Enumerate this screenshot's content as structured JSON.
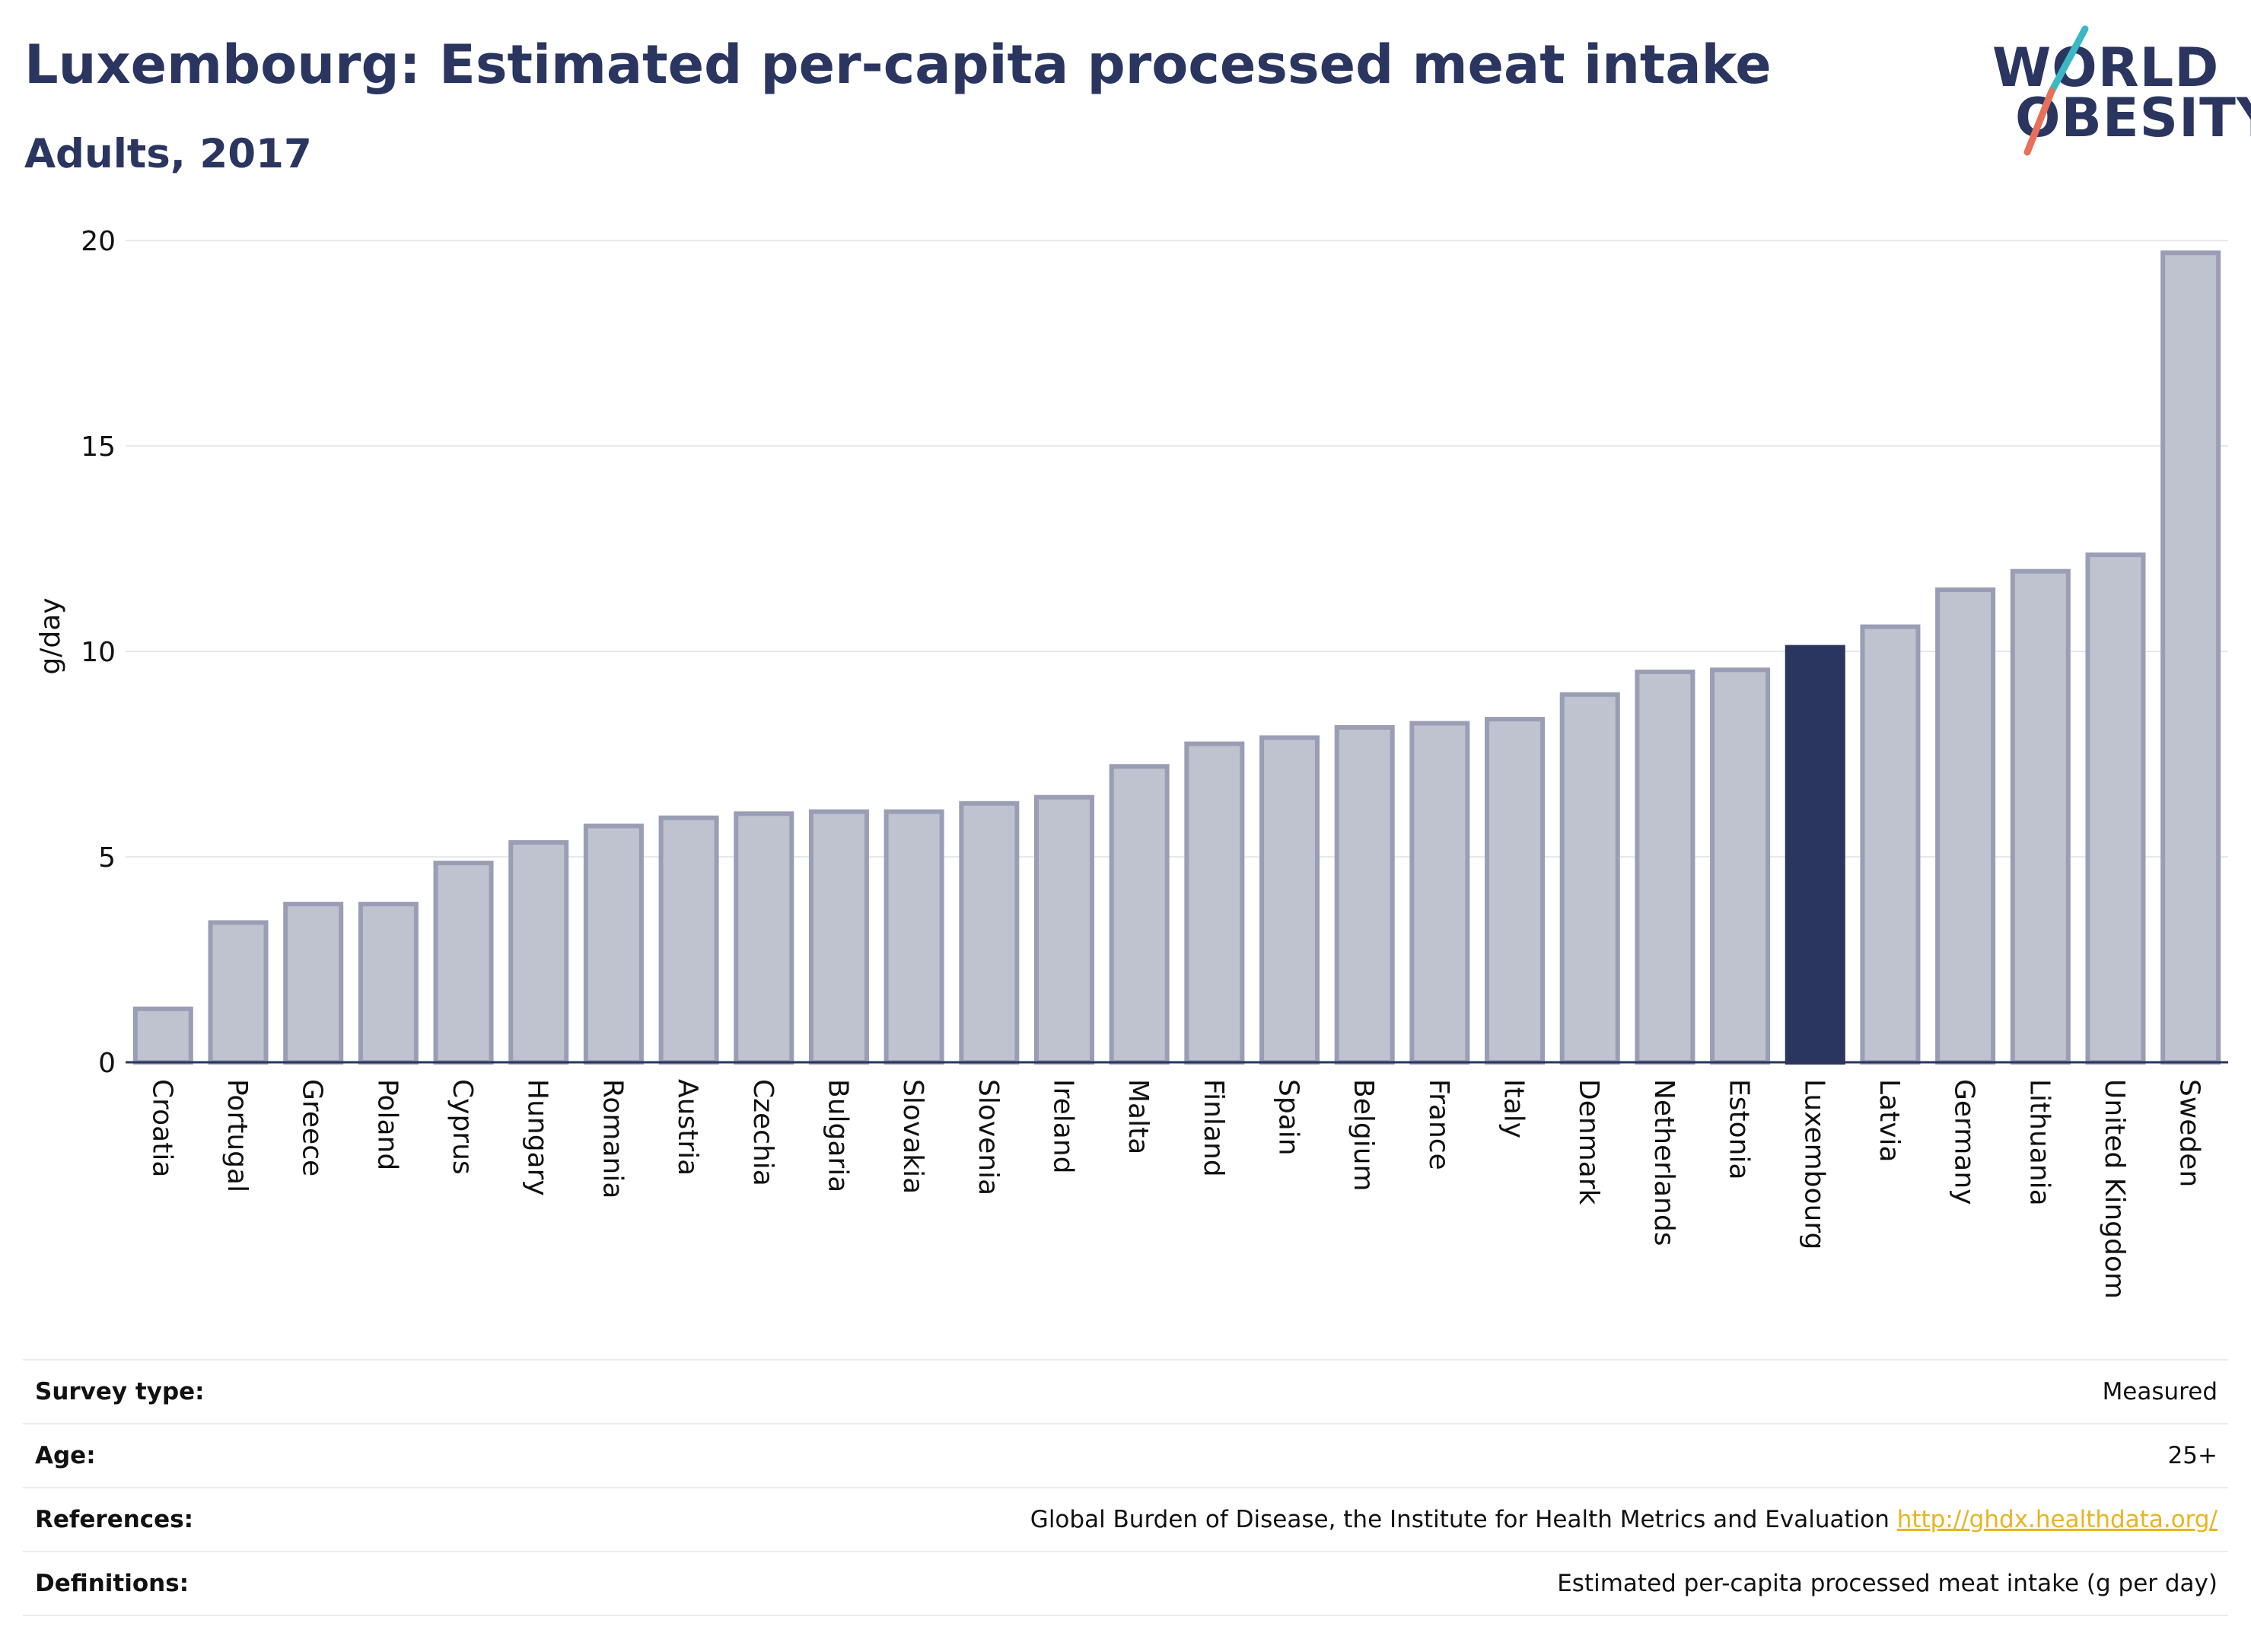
{
  "title": "Luxembourg: Estimated per-capita processed meat intake",
  "subtitle": "Adults, 2017",
  "logo": {
    "line1": "WORLD",
    "line2": "OBESITY"
  },
  "colors": {
    "highlight": "#2a3560",
    "bar_fill": "#bfc2cf",
    "bar_stroke": "#9a9eb5",
    "logo_teal": "#3bb8c3",
    "logo_coral": "#e8705a",
    "link": "#e8b422"
  },
  "chart_data": {
    "type": "bar",
    "ylabel": "g/day",
    "ylim": [
      0,
      20
    ],
    "yticks": [
      0,
      5,
      10,
      15,
      20
    ],
    "grid": true,
    "highlight": "Luxembourg",
    "categories": [
      "Croatia",
      "Portugal",
      "Greece",
      "Poland",
      "Cyprus",
      "Hungary",
      "Romania",
      "Austria",
      "Czechia",
      "Bulgaria",
      "Slovakia",
      "Slovenia",
      "Ireland",
      "Malta",
      "Finland",
      "Spain",
      "Belgium",
      "France",
      "Italy",
      "Denmark",
      "Netherlands",
      "Estonia",
      "Luxembourg",
      "Latvia",
      "Germany",
      "Lithuania",
      "United Kingdom",
      "Sweden"
    ],
    "values": [
      1.3,
      3.4,
      3.85,
      3.85,
      4.85,
      5.35,
      5.75,
      5.95,
      6.05,
      6.1,
      6.1,
      6.3,
      6.45,
      7.2,
      7.75,
      7.9,
      8.15,
      8.25,
      8.35,
      8.95,
      9.5,
      9.55,
      10.1,
      10.6,
      11.5,
      11.95,
      12.35,
      19.7
    ]
  },
  "info": [
    {
      "label": "Survey type:",
      "value": "Measured"
    },
    {
      "label": "Age:",
      "value": "25+"
    },
    {
      "label": "References:",
      "value": "Global Burden of Disease, the Institute for Health Metrics and Evaluation",
      "link": "http://ghdx.healthdata.org/"
    },
    {
      "label": "Definitions:",
      "value": "Estimated per-capita processed meat intake (g per day)"
    }
  ]
}
